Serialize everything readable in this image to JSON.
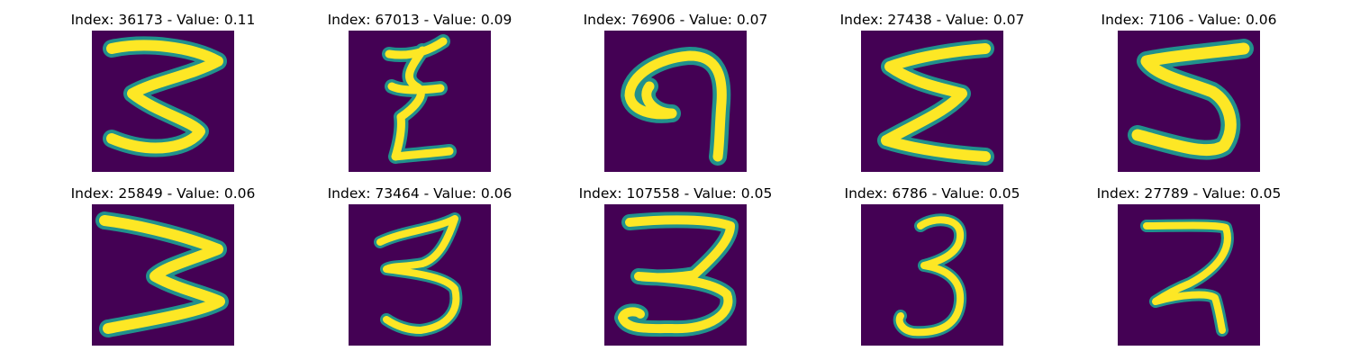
{
  "panels": [
    {
      "title": "Index: 36173 - Value: 0.11",
      "digit_icon": "handwritten-digit-3-icon"
    },
    {
      "title": "Index: 67013 - Value: 0.09",
      "digit_icon": "handwritten-digit-icon"
    },
    {
      "title": "Index: 76906 - Value: 0.07",
      "digit_icon": "handwritten-digit-9-icon"
    },
    {
      "title": "Index: 27438 - Value: 0.07",
      "digit_icon": "handwritten-digit-3-icon"
    },
    {
      "title": "Index: 7106 - Value: 0.06",
      "digit_icon": "handwritten-digit-5-icon"
    },
    {
      "title": "Index: 25849 - Value: 0.06",
      "digit_icon": "handwritten-digit-3-icon"
    },
    {
      "title": "Index: 73464 - Value: 0.06",
      "digit_icon": "handwritten-digit-3-icon"
    },
    {
      "title": "Index: 107558 - Value: 0.05",
      "digit_icon": "handwritten-digit-3-icon"
    },
    {
      "title": "Index: 6786 - Value: 0.05",
      "digit_icon": "handwritten-digit-3-icon"
    },
    {
      "title": "Index: 27789 - Value: 0.05",
      "digit_icon": "handwritten-digit-3-icon"
    }
  ],
  "colors": {
    "background": "#440154",
    "stroke_core": "#fde725",
    "stroke_edge": "#21918c"
  }
}
